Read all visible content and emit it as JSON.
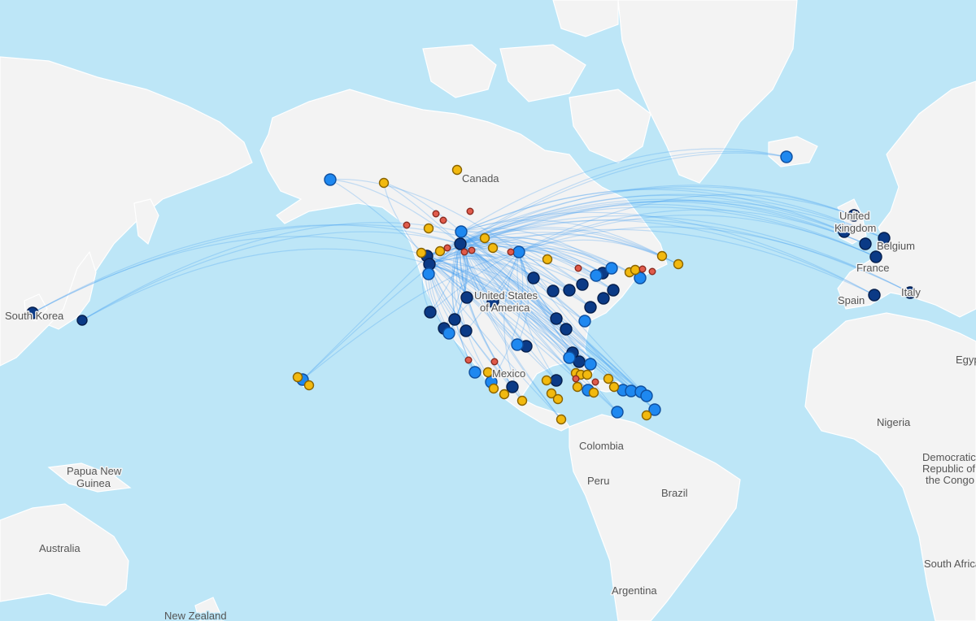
{
  "map": {
    "colors": {
      "water": "#bde6f7",
      "land": "#f3f3f3",
      "route": "#3d9bf2",
      "hub_dark": "#0b3a86",
      "hub_light": "#1e88f0",
      "secondary_yellow": "#f2b90f",
      "minor_red": "#e05b4b"
    },
    "labels": {
      "canada": "Canada",
      "usa_line1": "United States",
      "usa_line2": "of America",
      "mexico": "Mexico",
      "colombia": "Colombia",
      "peru": "Peru",
      "brazil": "Brazil",
      "argentina": "Argentina",
      "south_korea": "South Korea",
      "papua_line1": "Papua New",
      "papua_line2": "Guinea",
      "australia": "Australia",
      "new_zealand": "New Zealand",
      "uk_line1": "United",
      "uk_line2": "Kingdom",
      "belgium": "Belgium",
      "france": "France",
      "spain": "Spain",
      "italy": "Italy",
      "egypt": "Egypt",
      "nigeria": "Nigeria",
      "drc_line1": "Democratic",
      "drc_line2": "Republic of",
      "drc_line3": "the Congo",
      "south_africa": "South Africa"
    }
  }
}
